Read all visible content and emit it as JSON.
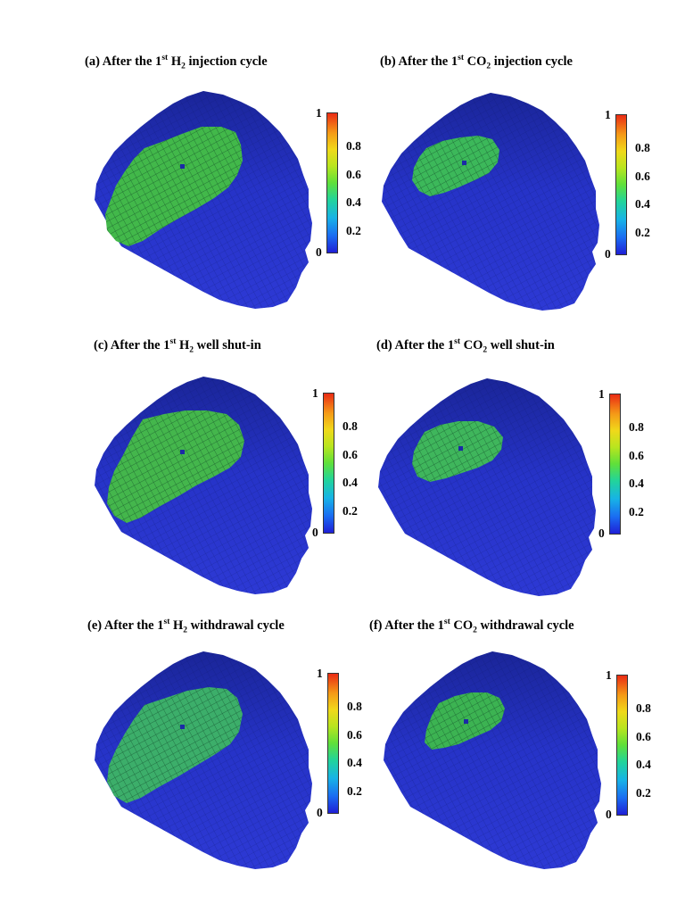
{
  "panels": [
    {
      "id": "a",
      "prefix": "(a) After the 1",
      "sup": "st",
      "species": "H",
      "sub": "2",
      "suffix": " injection cycle",
      "plume": "h2_injection"
    },
    {
      "id": "b",
      "prefix": "(b) After the 1",
      "sup": "st",
      "species": "CO",
      "sub": "2",
      "suffix": " injection cycle",
      "plume": "co2_injection"
    },
    {
      "id": "c",
      "prefix": "(c) After the 1",
      "sup": "st",
      "species": "H",
      "sub": "2",
      "suffix": " well shut-in",
      "plume": "h2_shutin"
    },
    {
      "id": "d",
      "prefix": "(d) After the 1",
      "sup": "st",
      "species": "CO",
      "sub": "2",
      "suffix": " well shut-in",
      "plume": "co2_shutin"
    },
    {
      "id": "e",
      "prefix": "(e) After the 1",
      "sup": "st",
      "species": "H",
      "sub": "2",
      "suffix": " withdrawal cycle",
      "plume": "h2_withdrawal"
    },
    {
      "id": "f",
      "prefix": "(f) After the 1",
      "sup": "st",
      "species": "CO",
      "sub": "2",
      "suffix": " withdrawal cycle",
      "plume": "co2_withdrawal"
    }
  ],
  "colorbar": {
    "labels": [
      "1",
      "0.8",
      "0.6",
      "0.4",
      "0.2",
      "0"
    ],
    "values": [
      1,
      0.8,
      0.6,
      0.4,
      0.2,
      0
    ],
    "colormap": [
      "#1f1fd6",
      "#1a6cf2",
      "#17b3e6",
      "#22d49a",
      "#5fe03a",
      "#b8e51f",
      "#f0d91a",
      "#f59a17",
      "#ea2b14"
    ]
  },
  "colors": {
    "reservoir": "#2430c4",
    "reservoir_dark": "#1a2494",
    "plume_h2": "#3fb04a",
    "plume_co2": "#33b250"
  }
}
